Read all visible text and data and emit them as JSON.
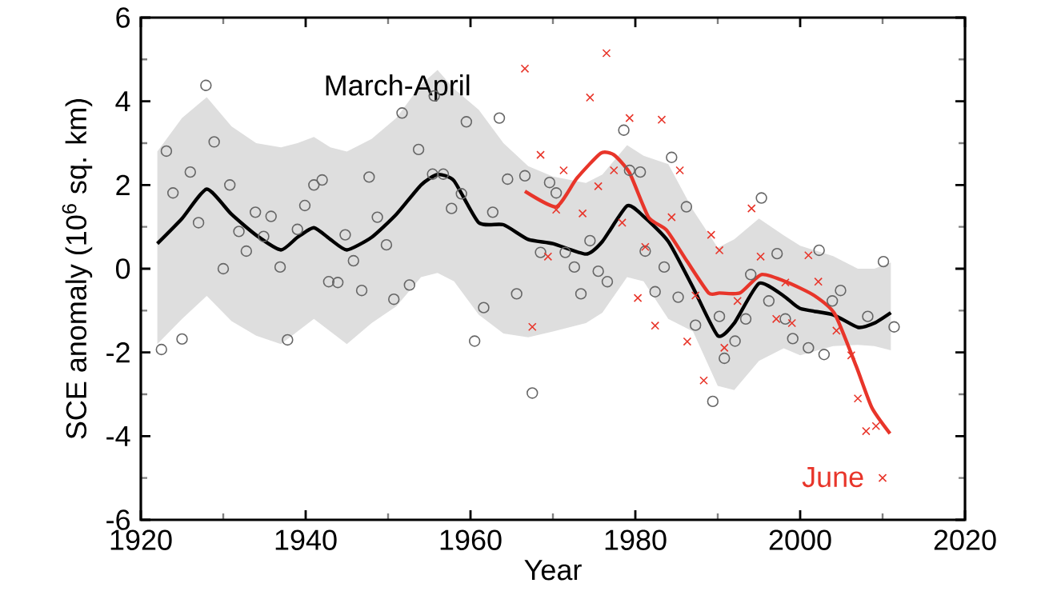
{
  "chart_data": {
    "type": "scatter",
    "xlabel": "Year",
    "ylabel": "SCE anomaly (10$^{6}$ sq. km)",
    "xlim": [
      1920,
      2020
    ],
    "ylim": [
      -6,
      6
    ],
    "xticks": [
      1920,
      1940,
      1960,
      1980,
      2000,
      2020
    ],
    "yticks": [
      -6,
      -4,
      -2,
      0,
      2,
      4,
      6
    ],
    "legend": false,
    "series": [
      {
        "marker": "circle",
        "color": "#666666",
        "x": [
          1922.5,
          1923.1,
          1923.9,
          1925.0,
          1926.0,
          1927.0,
          1927.9,
          1928.9,
          1930.0,
          1930.8,
          1931.9,
          1932.8,
          1933.9,
          1934.9,
          1935.8,
          1936.9,
          1937.8,
          1939.0,
          1939.9,
          1941.0,
          1942.0,
          1942.8,
          1943.9,
          1944.8,
          1945.8,
          1946.8,
          1947.7,
          1948.7,
          1949.8,
          1950.7,
          1951.7,
          1952.6,
          1953.7,
          1955.4,
          1955.6,
          1956.7,
          1957.7,
          1958.9,
          1959.5,
          1960.5,
          1961.6,
          1962.7,
          1963.5,
          1964.5,
          1965.6,
          1966.6,
          1967.5,
          1968.5,
          1969.6,
          1970.4,
          1971.5,
          1972.6,
          1973.4,
          1974.5,
          1975.5,
          1976.6,
          1978.6,
          1979.3,
          1980.6,
          1981.2,
          1982.4,
          1983.5,
          1984.4,
          1985.2,
          1986.2,
          1987.3,
          1989.4,
          1990.2,
          1990.8,
          1992.1,
          1993.4,
          1994.0,
          1995.3,
          1996.2,
          1997.2,
          1998.2,
          1999.1,
          2001.0,
          2002.3,
          2002.9,
          2003.9,
          2004.9,
          2008.2,
          2010.1,
          2011.4
        ],
        "values": [
          -1.93,
          2.81,
          1.81,
          -1.68,
          2.31,
          1.1,
          4.38,
          3.03,
          0.0,
          2.0,
          0.89,
          0.42,
          1.35,
          0.77,
          1.25,
          0.04,
          -1.7,
          0.94,
          1.51,
          2.0,
          2.12,
          -0.31,
          -0.33,
          0.81,
          0.19,
          -0.52,
          2.19,
          1.23,
          0.57,
          -0.73,
          3.72,
          -0.39,
          2.85,
          2.26,
          4.13,
          2.26,
          1.44,
          1.79,
          3.51,
          -1.73,
          -0.93,
          1.35,
          3.6,
          2.14,
          -0.6,
          2.22,
          -2.97,
          0.39,
          2.06,
          1.81,
          0.39,
          0.04,
          -0.6,
          0.67,
          -0.06,
          -0.31,
          3.31,
          2.35,
          2.31,
          0.42,
          -0.55,
          0.04,
          2.66,
          -0.68,
          1.48,
          -1.35,
          -3.17,
          -1.14,
          -2.14,
          -1.73,
          -1.2,
          -0.14,
          1.69,
          -0.77,
          0.36,
          -1.2,
          -1.67,
          -1.89,
          0.44,
          -2.05,
          -0.77,
          -0.52,
          -1.14,
          0.17,
          -1.39
        ]
      },
      {
        "marker": "cross",
        "color": "#e8352a",
        "x": [
          1966.6,
          1967.5,
          1968.5,
          1969.4,
          1970.4,
          1971.3,
          1973.6,
          1974.5,
          1975.5,
          1976.5,
          1977.4,
          1978.4,
          1979.3,
          1980.3,
          1981.2,
          1982.4,
          1983.2,
          1984.4,
          1985.4,
          1986.3,
          1987.3,
          1988.3,
          1989.2,
          1990.2,
          1990.8,
          1992.4,
          1994.1,
          1995.2,
          1997.1,
          1998.2,
          1999.0,
          2001.0,
          2002.2,
          2004.4,
          2006.2,
          2007.0,
          2008.0,
          2009.2,
          2010.0
        ],
        "values": [
          4.78,
          -1.39,
          2.72,
          0.29,
          1.41,
          2.35,
          1.32,
          4.09,
          1.97,
          5.15,
          2.35,
          1.1,
          3.6,
          -0.7,
          0.52,
          -1.36,
          3.56,
          1.23,
          2.35,
          -1.74,
          -0.64,
          -2.67,
          0.81,
          0.44,
          -1.89,
          -0.77,
          1.44,
          0.29,
          -1.2,
          -0.33,
          -1.3,
          0.32,
          -0.31,
          -1.48,
          -2.07,
          -3.1,
          -3.88,
          -3.76,
          -5.0
        ]
      },
      {
        "type": "line",
        "name": "March-April",
        "color": "#000000",
        "x": [
          1922,
          1925,
          1928,
          1931,
          1934,
          1937,
          1939,
          1941,
          1943,
          1945,
          1948,
          1951,
          1954,
          1956,
          1958,
          1961,
          1964,
          1967,
          1970,
          1974,
          1976,
          1979,
          1981,
          1984,
          1987,
          1990,
          1992,
          1995,
          1998,
          2000,
          2004,
          2007,
          2009,
          2011
        ],
        "values": [
          0.6,
          1.2,
          1.9,
          1.3,
          0.8,
          0.45,
          0.75,
          0.98,
          0.7,
          0.45,
          0.75,
          1.3,
          2.0,
          2.25,
          2.1,
          1.1,
          1.05,
          0.7,
          0.6,
          0.35,
          0.65,
          1.5,
          1.25,
          0.65,
          -0.45,
          -1.6,
          -1.3,
          -0.35,
          -0.65,
          -0.95,
          -1.1,
          -1.4,
          -1.3,
          -1.05
        ],
        "upper": [
          2.8,
          3.6,
          4.1,
          3.4,
          3.0,
          2.9,
          3.0,
          3.15,
          2.9,
          2.8,
          3.1,
          3.6,
          4.4,
          4.75,
          4.3,
          3.8,
          3.0,
          2.45,
          2.2,
          2.05,
          2.25,
          2.95,
          2.7,
          2.5,
          1.4,
          0.5,
          0.7,
          1.2,
          0.8,
          0.55,
          0.3,
          0.0,
          0.0,
          0.15
        ],
        "lower": [
          -1.8,
          -1.2,
          -0.65,
          -1.25,
          -1.6,
          -1.8,
          -1.5,
          -1.2,
          -1.5,
          -1.8,
          -1.3,
          -0.9,
          -0.2,
          -0.1,
          -0.3,
          -1.1,
          -1.55,
          -1.64,
          -1.5,
          -1.3,
          -1.05,
          -0.2,
          -0.3,
          -1.2,
          -1.5,
          -2.8,
          -2.9,
          -2.2,
          -1.9,
          -2.07,
          -1.85,
          -1.82,
          -1.85,
          -1.95
        ]
      },
      {
        "type": "line",
        "name": "June",
        "color": "#e8352a",
        "x": [
          1966.6,
          1970.4,
          1972.9,
          1975.8,
          1977.4,
          1979.3,
          1981.6,
          1983.8,
          1986.3,
          1988.9,
          1990.2,
          1992.7,
          1995.3,
          1998.5,
          2001.7,
          2004.2,
          2006.8,
          2008.7,
          2010.9
        ],
        "values": [
          1.85,
          1.48,
          2.16,
          2.76,
          2.72,
          2.29,
          1.23,
          0.92,
          0.17,
          -0.58,
          -0.58,
          -0.58,
          -0.14,
          -0.33,
          -0.64,
          -1.08,
          -2.33,
          -3.32,
          -3.94
        ]
      }
    ]
  }
}
